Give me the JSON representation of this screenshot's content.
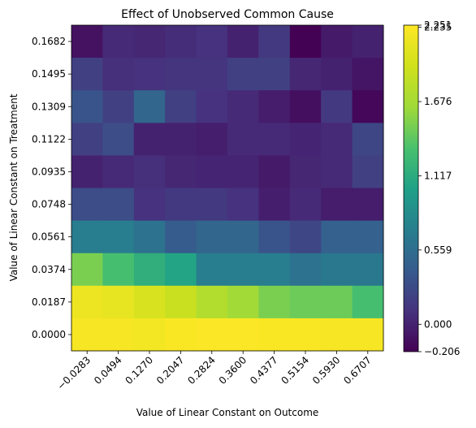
{
  "chart_data": {
    "type": "heatmap",
    "title": "Effect of Unobserved Common Cause",
    "x_label": "Value of Linear Constant on Outcome",
    "y_label": "Value of Linear Constant on Treatment",
    "x_categories": [
      "−0.0283",
      "0.0494",
      "0.1270",
      "0.2047",
      "0.2824",
      "0.3600",
      "0.4377",
      "0.5154",
      "0.5930",
      "0.6707"
    ],
    "y_categories": [
      "0.1682",
      "0.1495",
      "0.1309",
      "0.1122",
      "0.0935",
      "0.0748",
      "0.0561",
      "0.0374",
      "0.0187",
      "0.0000"
    ],
    "values": [
      [
        -0.1,
        0.05,
        0.03,
        0.07,
        0.1,
        0.0,
        0.15,
        -0.2,
        -0.05,
        0.0
      ],
      [
        0.2,
        0.08,
        0.1,
        0.12,
        0.12,
        0.2,
        0.2,
        0.03,
        0.0,
        -0.08
      ],
      [
        0.35,
        0.2,
        0.5,
        0.2,
        0.1,
        0.05,
        -0.03,
        -0.12,
        0.15,
        -0.17
      ],
      [
        0.2,
        0.3,
        0.0,
        0.0,
        -0.02,
        0.05,
        0.05,
        0.02,
        0.05,
        0.25
      ],
      [
        0.0,
        0.05,
        0.08,
        0.03,
        0.02,
        0.02,
        -0.05,
        0.03,
        0.05,
        0.2
      ],
      [
        0.3,
        0.3,
        0.1,
        0.15,
        0.15,
        0.1,
        -0.02,
        0.05,
        -0.03,
        -0.03
      ],
      [
        0.7,
        0.7,
        0.6,
        0.4,
        0.5,
        0.5,
        0.35,
        0.25,
        0.45,
        0.45
      ],
      [
        1.5,
        1.3,
        1.15,
        1.05,
        0.7,
        0.7,
        0.7,
        0.6,
        0.65,
        0.65
      ],
      [
        2.15,
        2.1,
        2.0,
        1.9,
        1.75,
        1.65,
        1.5,
        1.45,
        1.45,
        1.3
      ],
      [
        2.2,
        2.2,
        2.18,
        2.23,
        2.24,
        2.24,
        2.23,
        2.23,
        2.2,
        2.2
      ]
    ],
    "colormap": "viridis",
    "clim": [
      -0.206,
      2.251
    ],
    "cticks": [
      {
        "value": -0.206,
        "label": "−0.206"
      },
      {
        "value": 0,
        "label": "0.000"
      },
      0.559,
      1.117,
      1.676,
      2.235,
      2.251
    ]
  }
}
